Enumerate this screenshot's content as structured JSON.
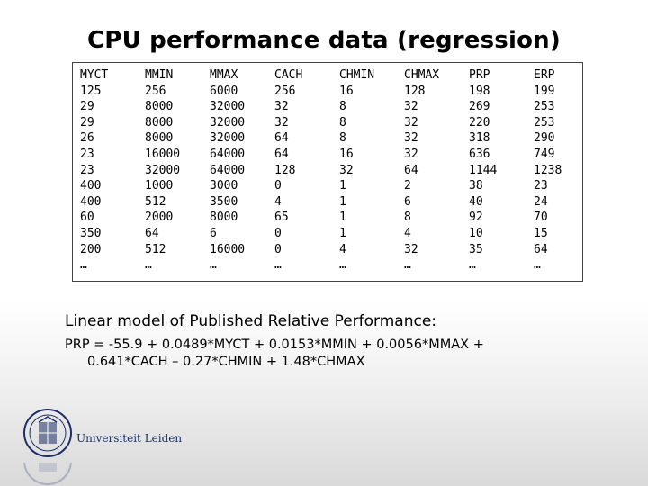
{
  "title": "CPU performance data (regression)",
  "table": {
    "columns": [
      {
        "header": "MYCT",
        "values": [
          "125",
          "29",
          "29",
          "26",
          "23",
          "23",
          "400",
          "400",
          "60",
          "350",
          "200",
          "…"
        ]
      },
      {
        "header": "MMIN",
        "values": [
          "256",
          "8000",
          "8000",
          "8000",
          "16000",
          "32000",
          "1000",
          "512",
          "2000",
          "64",
          "512",
          "…"
        ]
      },
      {
        "header": "MMAX",
        "values": [
          "6000",
          "32000",
          "32000",
          "32000",
          "64000",
          "64000",
          "3000",
          "3500",
          "8000",
          "6",
          "16000",
          "…"
        ]
      },
      {
        "header": "CACH",
        "values": [
          "256",
          "32",
          "32",
          "64",
          "64",
          "128",
          "0",
          "4",
          "65",
          "0",
          "0",
          "…"
        ]
      },
      {
        "header": "CHMIN",
        "values": [
          "16",
          "8",
          "8",
          "8",
          "16",
          "32",
          "1",
          "1",
          "1",
          "1",
          "4",
          "…"
        ]
      },
      {
        "header": "CHMAX",
        "values": [
          "128",
          "32",
          "32",
          "32",
          "32",
          "64",
          "2",
          "6",
          "8",
          "4",
          "32",
          "…"
        ]
      },
      {
        "header": "PRP",
        "values": [
          "198",
          "269",
          "220",
          "318",
          "636",
          "1144",
          "38",
          "40",
          "92",
          "10",
          "35",
          "…"
        ]
      },
      {
        "header": "ERP",
        "values": [
          "199",
          "253",
          "253",
          "290",
          "749",
          "1238",
          "23",
          "24",
          "70",
          "15",
          "64",
          "…"
        ]
      }
    ]
  },
  "caption": "Linear model of Published Relative Performance:",
  "formula": {
    "line1": "PRP = -55.9 + 0.0489*MYCT + 0.0153*MMIN + 0.0056*MMAX +",
    "line2": "0.641*CACH – 0.27*CHMIN + 1.48*CHMAX"
  },
  "logo": {
    "name": "Universiteit Leiden",
    "color": "#1e2f66"
  }
}
